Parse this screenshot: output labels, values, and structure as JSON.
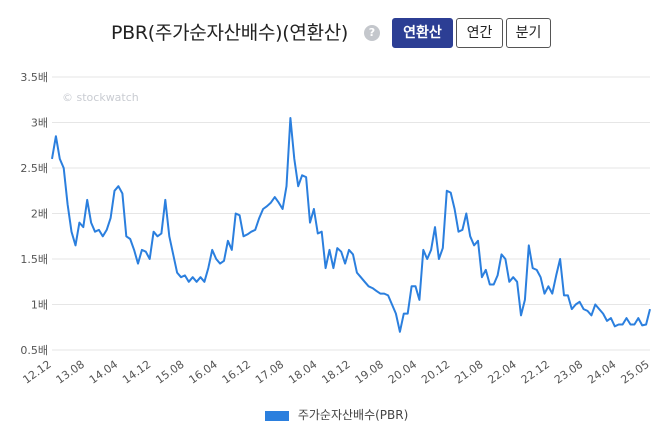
{
  "header": {
    "title": "PBR(주가순자산배수)(연환산)",
    "help_icon": "?",
    "buttons": [
      {
        "label": "연환산",
        "active": true
      },
      {
        "label": "연간",
        "active": false
      },
      {
        "label": "분기",
        "active": false
      }
    ]
  },
  "watermark": "© stockwatch",
  "colors": {
    "line": "#2b7fde",
    "active_button": "#2c3e94",
    "grid": "#e6e6e6"
  },
  "chart_data": {
    "type": "line",
    "ylim": [
      0.5,
      3.5
    ],
    "yticks": [
      "0.5배",
      "1배",
      "1.5배",
      "2배",
      "2.5배",
      "3배",
      "3.5배"
    ],
    "ytick_values": [
      0.5,
      1,
      1.5,
      2,
      2.5,
      3,
      3.5
    ],
    "x_tick_labels": [
      "12.12",
      "13.08",
      "14.04",
      "14.12",
      "15.08",
      "16.04",
      "16.12",
      "17.08",
      "18.04",
      "18.12",
      "19.08",
      "20.04",
      "20.12",
      "21.08",
      "22.04",
      "22.12",
      "23.08",
      "24.04",
      "25.05"
    ],
    "grid": true,
    "legend": "bottom",
    "series": [
      {
        "name": "주가순자산배수(PBR)",
        "color": "#2b7fde",
        "values": [
          2.6,
          2.85,
          2.6,
          2.5,
          2.1,
          1.8,
          1.65,
          1.9,
          1.85,
          2.15,
          1.9,
          1.8,
          1.82,
          1.75,
          1.82,
          1.95,
          2.25,
          2.3,
          2.22,
          1.75,
          1.72,
          1.6,
          1.45,
          1.6,
          1.58,
          1.5,
          1.8,
          1.75,
          1.78,
          2.15,
          1.75,
          1.55,
          1.35,
          1.3,
          1.32,
          1.25,
          1.3,
          1.25,
          1.3,
          1.25,
          1.4,
          1.6,
          1.5,
          1.45,
          1.48,
          1.7,
          1.6,
          2.0,
          1.98,
          1.75,
          1.77,
          1.8,
          1.82,
          1.95,
          2.05,
          2.08,
          2.12,
          2.18,
          2.12,
          2.05,
          2.3,
          3.05,
          2.6,
          2.3,
          2.42,
          2.4,
          1.9,
          2.05,
          1.78,
          1.8,
          1.4,
          1.6,
          1.4,
          1.62,
          1.58,
          1.45,
          1.6,
          1.55,
          1.35,
          1.3,
          1.25,
          1.2,
          1.18,
          1.15,
          1.12,
          1.12,
          1.1,
          1.0,
          0.9,
          0.7,
          0.9,
          0.9,
          1.2,
          1.2,
          1.05,
          1.6,
          1.5,
          1.6,
          1.85,
          1.5,
          1.62,
          2.25,
          2.23,
          2.05,
          1.8,
          1.82,
          2.0,
          1.75,
          1.65,
          1.7,
          1.3,
          1.38,
          1.22,
          1.22,
          1.32,
          1.55,
          1.5,
          1.25,
          1.3,
          1.25,
          0.88,
          1.05,
          1.65,
          1.4,
          1.38,
          1.3,
          1.12,
          1.2,
          1.12,
          1.32,
          1.5,
          1.1,
          1.1,
          0.95,
          1.0,
          1.03,
          0.95,
          0.93,
          0.88,
          1.0,
          0.95,
          0.9,
          0.82,
          0.85,
          0.76,
          0.78,
          0.78,
          0.85,
          0.78,
          0.78,
          0.85,
          0.77,
          0.78,
          0.95
        ]
      }
    ]
  }
}
